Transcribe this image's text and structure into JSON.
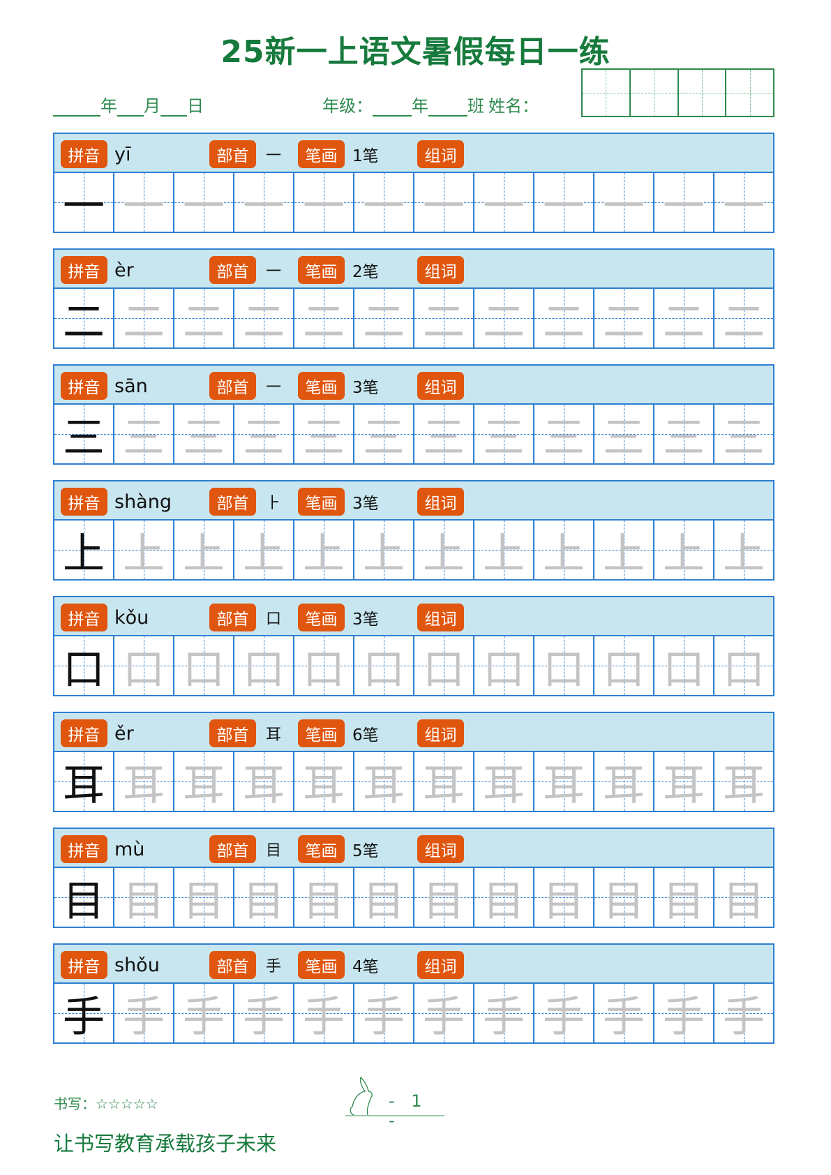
{
  "title": "25新一上语文暑假每日一练",
  "header": {
    "year": "年",
    "month": "月",
    "day": "日",
    "grade_label": "年级：",
    "grade_year": "年",
    "class": "班",
    "name_label": "姓名："
  },
  "labels": {
    "pinyin": "拼音",
    "radical": "部首",
    "strokes": "笔画",
    "words": "组词"
  },
  "colors": {
    "title": "#167a3c",
    "band": "#c8e6ef",
    "grid": "#2f7fd0",
    "badge": "#e0560f"
  },
  "rows": [
    {
      "char": "一",
      "pinyin": "yī",
      "radical": "一",
      "strokes": "1笔"
    },
    {
      "char": "二",
      "pinyin": "èr",
      "radical": "一",
      "strokes": "2笔"
    },
    {
      "char": "三",
      "pinyin": "sān",
      "radical": "一",
      "strokes": "3笔"
    },
    {
      "char": "上",
      "pinyin": "shàng",
      "radical": "⺊",
      "strokes": "3笔"
    },
    {
      "char": "口",
      "pinyin": "kǒu",
      "radical": "口",
      "strokes": "3笔"
    },
    {
      "char": "耳",
      "pinyin": "ěr",
      "radical": "耳",
      "strokes": "6笔"
    },
    {
      "char": "目",
      "pinyin": "mù",
      "radical": "目",
      "strokes": "5笔"
    },
    {
      "char": "手",
      "pinyin": "shǒu",
      "radical": "手",
      "strokes": "4笔"
    }
  ],
  "footer": {
    "rating_label": "书写：",
    "stars": "☆☆☆☆☆",
    "page": "- 1 -",
    "slogan": "让书写教育承载孩子未来"
  }
}
